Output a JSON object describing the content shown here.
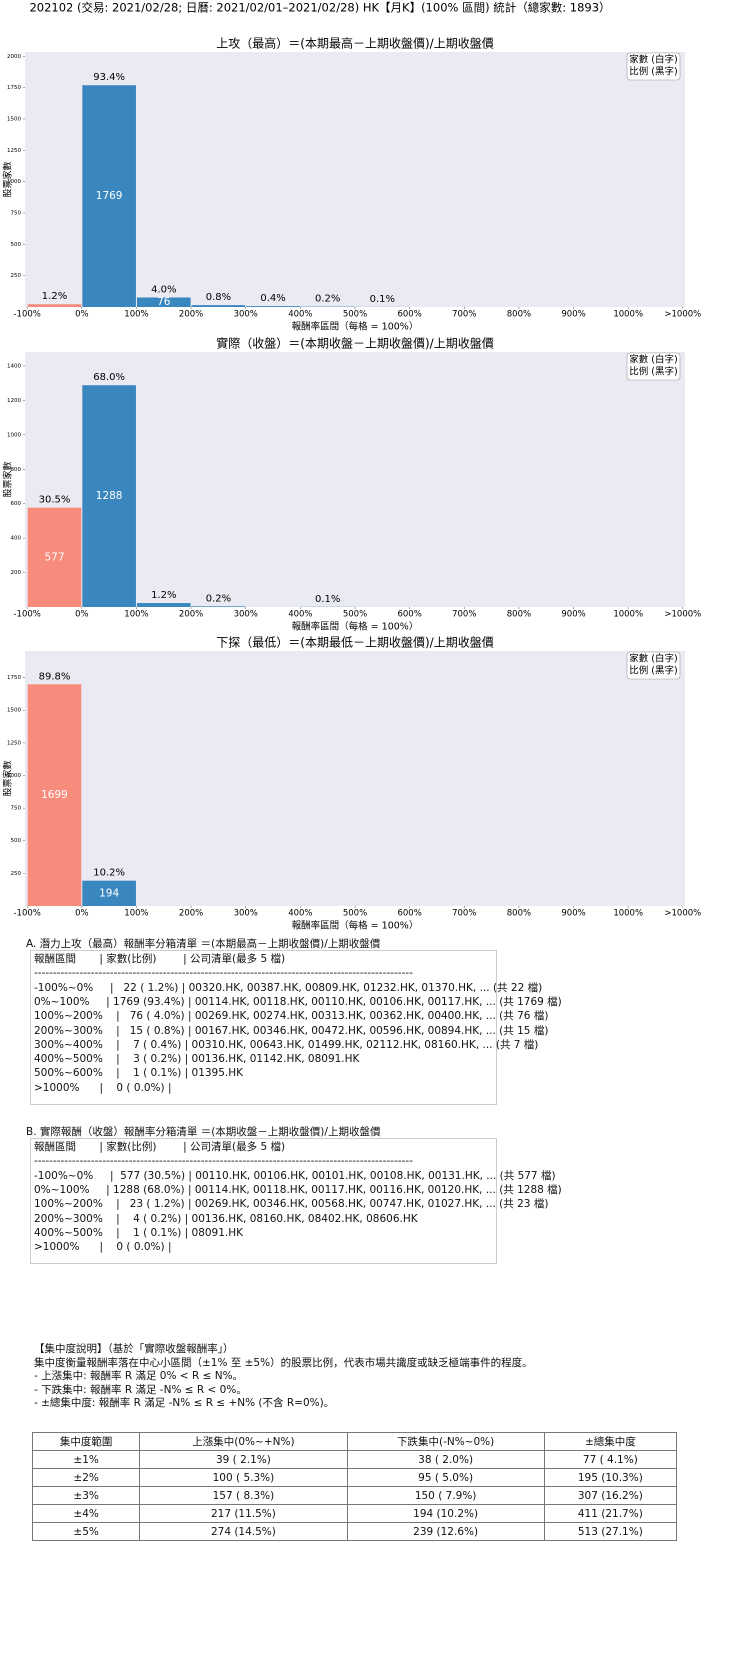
{
  "title": "202102 (交易: 2021/02/28; 日曆: 2021/02/01–2021/02/28) HK【月K】(100% 區間) 統計（總家數: 1893）",
  "chart_data": [
    {
      "type": "histogram",
      "title": "上攻（最高）＝(本期最高－上期收盤價)/上期收盤價",
      "ylabel": "股票家數",
      "xlabel": "報酬率區間（每格 = 100%）",
      "bins": [
        -100,
        0,
        100,
        200,
        300,
        400,
        500,
        600,
        700,
        800,
        900,
        1000,
        1100
      ],
      "values": [
        22,
        1769,
        76,
        15,
        7,
        3,
        1,
        0,
        0,
        0,
        0,
        0
      ],
      "share_labels": [
        "1.2%",
        "93.4%",
        "4.0%",
        "0.8%",
        "0.4%",
        "0.2%",
        "0.1%",
        null,
        null,
        null,
        null,
        null
      ],
      "color": "#3a87c0",
      "negative_color": "#f88c7c",
      "xlim": [
        -104,
        1104
      ],
      "xticks": [
        {
          "value": -100,
          "label": "-100%"
        },
        {
          "value": 0,
          "label": "0%"
        },
        {
          "value": 100,
          "label": "100%"
        },
        {
          "value": 200,
          "label": "200%"
        },
        {
          "value": 300,
          "label": "300%"
        },
        {
          "value": 400,
          "label": "400%"
        },
        {
          "value": 500,
          "label": "500%"
        },
        {
          "value": 600,
          "label": "600%"
        },
        {
          "value": 700,
          "label": "700%"
        },
        {
          "value": 800,
          "label": "800%"
        },
        {
          "value": 900,
          "label": "900%"
        },
        {
          "value": 1000,
          "label": "1000%"
        },
        {
          "value": 1100,
          "label": ">1000%"
        }
      ],
      "ylim": [
        0,
        2034
      ],
      "yticks": [
        250,
        500,
        750,
        1000,
        1250,
        1500,
        1750,
        2000
      ],
      "legend": [
        "家數 (白字)",
        "比例 (黑字)"
      ],
      "legend_loc": "upper right"
    },
    {
      "type": "histogram",
      "title": "實際（收盤）＝(本期收盤－上期收盤價)/上期收盤價",
      "ylabel": "股票家數",
      "xlabel": "報酬率區間（每格 = 100%）",
      "bins": [
        -100,
        0,
        100,
        200,
        300,
        400,
        500,
        600,
        700,
        800,
        900,
        1000,
        1100
      ],
      "values": [
        577,
        1288,
        23,
        4,
        0,
        1,
        0,
        0,
        0,
        0,
        0,
        0
      ],
      "share_labels": [
        "30.5%",
        "68.0%",
        "1.2%",
        "0.2%",
        null,
        "0.1%",
        null,
        null,
        null,
        null,
        null,
        null
      ],
      "color": "#3a87c0",
      "negative_color": "#f88c7c",
      "xlim": [
        -104,
        1104
      ],
      "xticks": [
        {
          "value": -100,
          "label": "-100%"
        },
        {
          "value": 0,
          "label": "0%"
        },
        {
          "value": 100,
          "label": "100%"
        },
        {
          "value": 200,
          "label": "200%"
        },
        {
          "value": 300,
          "label": "300%"
        },
        {
          "value": 400,
          "label": "400%"
        },
        {
          "value": 500,
          "label": "500%"
        },
        {
          "value": 600,
          "label": "600%"
        },
        {
          "value": 700,
          "label": "700%"
        },
        {
          "value": 800,
          "label": "800%"
        },
        {
          "value": 900,
          "label": "900%"
        },
        {
          "value": 1000,
          "label": "1000%"
        },
        {
          "value": 1100,
          "label": ">1000%"
        }
      ],
      "ylim": [
        0,
        1481
      ],
      "yticks": [
        200,
        400,
        600,
        800,
        1000,
        1200,
        1400
      ],
      "legend": [
        "家數 (白字)",
        "比例 (黑字)"
      ],
      "legend_loc": "upper right"
    },
    {
      "type": "histogram",
      "title": "下探（最低）＝(本期最低－上期收盤價)/上期收盤價",
      "ylabel": "股票家數",
      "xlabel": "報酬率區間（每格 = 100%）",
      "bins": [
        -100,
        0,
        100,
        200,
        300,
        400,
        500,
        600,
        700,
        800,
        900,
        1000,
        1100
      ],
      "values": [
        1699,
        194,
        0,
        0,
        0,
        0,
        0,
        0,
        0,
        0,
        0,
        0
      ],
      "share_labels": [
        "89.8%",
        "10.2%",
        null,
        null,
        null,
        null,
        null,
        null,
        null,
        null,
        null,
        null
      ],
      "color": "#3a87c0",
      "negative_color": "#f88c7c",
      "xlim": [
        -104,
        1104
      ],
      "xticks": [
        {
          "value": -100,
          "label": "-100%"
        },
        {
          "value": 0,
          "label": "0%"
        },
        {
          "value": 100,
          "label": "100%"
        },
        {
          "value": 200,
          "label": "200%"
        },
        {
          "value": 300,
          "label": "300%"
        },
        {
          "value": 400,
          "label": "400%"
        },
        {
          "value": 500,
          "label": "500%"
        },
        {
          "value": 600,
          "label": "600%"
        },
        {
          "value": 700,
          "label": "700%"
        },
        {
          "value": 800,
          "label": "800%"
        },
        {
          "value": 900,
          "label": "900%"
        },
        {
          "value": 1000,
          "label": "1000%"
        },
        {
          "value": 1100,
          "label": ">1000%"
        }
      ],
      "ylim": [
        0,
        1954
      ],
      "yticks": [
        250,
        500,
        750,
        1000,
        1250,
        1500,
        1750
      ],
      "legend": [
        "家數 (白字)",
        "比例 (黑字)"
      ],
      "legend_loc": "upper right"
    }
  ],
  "lists": [
    {
      "title": "A. 潛力上攻（最高）報酬率分箱清單 ＝(本期最高－上期收盤價)/上期收盤價",
      "header": "報酬區間       | 家數(比例)        | 公司清單(最多 5 檔)",
      "separator": "----------------------------------------------------------------------------------------------------",
      "lines": [
        "-100%~0%     |   22 ( 1.2%) | 00320.HK, 00387.HK, 00809.HK, 01232.HK, 01370.HK, ... (共 22 檔)",
        "0%~100%     | 1769 (93.4%) | 00114.HK, 00118.HK, 00110.HK, 00106.HK, 00117.HK, ... (共 1769 檔)",
        "100%~200%    |   76 ( 4.0%) | 00269.HK, 00274.HK, 00313.HK, 00362.HK, 00400.HK, ... (共 76 檔)",
        "200%~300%    |   15 ( 0.8%) | 00167.HK, 00346.HK, 00472.HK, 00596.HK, 00894.HK, ... (共 15 檔)",
        "300%~400%    |    7 ( 0.4%) | 00310.HK, 00643.HK, 01499.HK, 02112.HK, 08160.HK, ... (共 7 檔)",
        "400%~500%    |    3 ( 0.2%) | 00136.HK, 01142.HK, 08091.HK",
        "500%~600%    |    1 ( 0.1%) | 01395.HK",
        ">1000%      |    0 ( 0.0%) |"
      ]
    },
    {
      "title": "B. 實際報酬（收盤）報酬率分箱清單 ＝(本期收盤－上期收盤價)/上期收盤價",
      "header": "報酬區間       | 家數(比例)        | 公司清單(最多 5 檔)",
      "separator": "----------------------------------------------------------------------------------------------------",
      "lines": [
        "-100%~0%     |  577 (30.5%) | 00110.HK, 00106.HK, 00101.HK, 00108.HK, 00131.HK, ... (共 577 檔)",
        "0%~100%     | 1288 (68.0%) | 00114.HK, 00118.HK, 00117.HK, 00116.HK, 00120.HK, ... (共 1288 檔)",
        "100%~200%    |   23 ( 1.2%) | 00269.HK, 00346.HK, 00568.HK, 00747.HK, 01027.HK, ... (共 23 檔)",
        "200%~300%    |    4 ( 0.2%) | 00136.HK, 08160.HK, 08402.HK, 08606.HK",
        "400%~500%    |    1 ( 0.1%) | 08091.HK",
        ">1000%      |    0 ( 0.0%) |"
      ]
    }
  ],
  "notes": [
    "【集中度說明】（基於「實際收盤報酬率」）",
    "集中度衡量報酬率落在中心小區間（±1% 至 ±5%）的股票比例，代表市場共識度或缺乏極端事件的程度。",
    "- 上漲集中: 報酬率 R 滿足 0% < R ≤ N%。",
    "- 下跌集中: 報酬率 R 滿足 -N% ≤ R < 0%。",
    "- ±總集中度: 報酬率 R 滿足 -N% ≤ R ≤ +N% (不含 R=0%)。"
  ],
  "table": {
    "header": [
      "集中度範圍",
      "上漲集中(0%~+N%)",
      "下跌集中(-N%~0%)",
      "±總集中度"
    ],
    "rows": [
      [
        "±1%",
        "39 ( 2.1%)",
        "38 ( 2.0%)",
        "77 ( 4.1%)"
      ],
      [
        "±2%",
        "100 ( 5.3%)",
        "95 ( 5.0%)",
        "195 (10.3%)"
      ],
      [
        "±3%",
        "157 ( 8.3%)",
        "150 ( 7.9%)",
        "307 (16.2%)"
      ],
      [
        "±4%",
        "217 (11.5%)",
        "194 (10.2%)",
        "411 (21.7%)"
      ],
      [
        "±5%",
        "274 (14.5%)",
        "239 (12.6%)",
        "513 (27.1%)"
      ]
    ]
  }
}
